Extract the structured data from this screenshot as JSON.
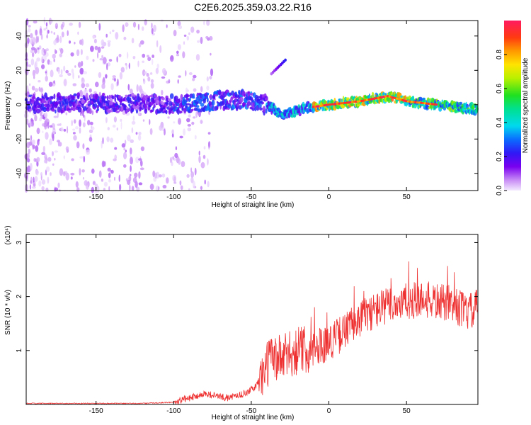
{
  "title": "C2E6.2025.359.03.22.R16",
  "chart_data": [
    {
      "type": "heatmap",
      "name": "spectrogram",
      "xlabel": "Height of straight line (km)",
      "ylabel": "Frequency (Hz)",
      "xlim": [
        -195,
        96
      ],
      "ylim": [
        -50,
        49
      ],
      "xticks": [
        -150,
        -100,
        -50,
        0,
        50
      ],
      "yticks": [
        -40,
        -20,
        0,
        20,
        40
      ],
      "colorbar": {
        "label": "Normalized spectral amplitude",
        "range": [
          0,
          1
        ],
        "ticks": [
          0.0,
          0.2,
          0.4,
          0.6,
          0.8
        ],
        "tick_labels": [
          "0.0",
          "0.2",
          "0.4",
          "0.6",
          "0.8"
        ]
      },
      "ridge": {
        "x": [
          -195,
          -150,
          -100,
          -75,
          -55,
          -40,
          -35,
          -30,
          -25,
          -15,
          0,
          20,
          38,
          50,
          70,
          96
        ],
        "freq": [
          1,
          1,
          0,
          2,
          3,
          0,
          -3,
          -6,
          -5,
          -2,
          0,
          2,
          5,
          2,
          0,
          -3
        ]
      },
      "streak": {
        "x": [
          -37,
          -28
        ],
        "freq": [
          18,
          26
        ]
      }
    },
    {
      "type": "line",
      "name": "snr",
      "color": "#ee3030",
      "xlabel": "Height of straight line (km)",
      "ylabel": "SNR (10 * v/v)",
      "yscale_label": "(x10⁴)",
      "xlim": [
        -195,
        96
      ],
      "ylim": [
        0,
        3.15
      ],
      "xticks": [
        -150,
        -100,
        -50,
        0,
        50
      ],
      "yticks": [
        1,
        2,
        3
      ],
      "envelope": {
        "x": [
          -195,
          -120,
          -100,
          -90,
          -80,
          -65,
          -55,
          -48,
          -42,
          -38,
          -30,
          -20,
          -10,
          0,
          10,
          20,
          30,
          40,
          50,
          60,
          70,
          80,
          90,
          96
        ],
        "y": [
          0.02,
          0.02,
          0.04,
          0.12,
          0.2,
          0.12,
          0.2,
          0.3,
          0.6,
          0.85,
          0.85,
          1.0,
          1.05,
          1.15,
          1.35,
          1.6,
          1.75,
          1.85,
          1.9,
          1.95,
          1.9,
          1.85,
          1.7,
          1.8
        ]
      }
    }
  ]
}
